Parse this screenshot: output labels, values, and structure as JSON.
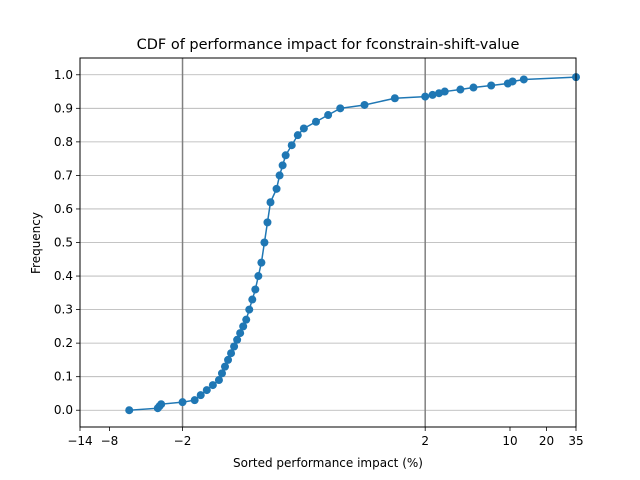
{
  "chart_data": {
    "type": "line",
    "title": "CDF of performance impact for fconstrain-shift-value",
    "xlabel": "Sorted performance impact (%)",
    "ylabel": "Frequency",
    "xlim": [
      -14,
      35
    ],
    "ylim": [
      -0.05,
      1.05
    ],
    "x_scale": "symlog",
    "x_ticks": [
      -14,
      -8,
      -2,
      2,
      10,
      20,
      35
    ],
    "x_tick_labels": [
      "−14",
      "−8",
      "−2",
      "2",
      "10",
      "20",
      "35"
    ],
    "y_ticks": [
      0.0,
      0.1,
      0.2,
      0.3,
      0.4,
      0.5,
      0.6,
      0.7,
      0.8,
      0.9,
      1.0
    ],
    "y_tick_labels": [
      "0.0",
      "0.1",
      "0.2",
      "0.3",
      "0.4",
      "0.5",
      "0.6",
      "0.7",
      "0.8",
      "0.9",
      "1.0"
    ],
    "grid": "y",
    "reference_lines_x": [
      -2,
      2
    ],
    "reference_line_color": "#808080",
    "series_color": "#1f77b4",
    "series": [
      {
        "values": [
          [
            -5.5,
            0.0
          ],
          [
            -3.2,
            0.006
          ],
          [
            -3.1,
            0.012
          ],
          [
            -3.0,
            0.018
          ],
          [
            -2.0,
            0.024
          ],
          [
            -1.8,
            0.03
          ],
          [
            -1.7,
            0.045
          ],
          [
            -1.6,
            0.06
          ],
          [
            -1.5,
            0.075
          ],
          [
            -1.4,
            0.09
          ],
          [
            -1.35,
            0.11
          ],
          [
            -1.3,
            0.13
          ],
          [
            -1.25,
            0.15
          ],
          [
            -1.2,
            0.17
          ],
          [
            -1.15,
            0.19
          ],
          [
            -1.1,
            0.21
          ],
          [
            -1.05,
            0.23
          ],
          [
            -1.0,
            0.25
          ],
          [
            -0.95,
            0.27
          ],
          [
            -0.9,
            0.3
          ],
          [
            -0.85,
            0.33
          ],
          [
            -0.8,
            0.36
          ],
          [
            -0.75,
            0.4
          ],
          [
            -0.7,
            0.44
          ],
          [
            -0.65,
            0.5
          ],
          [
            -0.6,
            0.56
          ],
          [
            -0.55,
            0.62
          ],
          [
            -0.45,
            0.66
          ],
          [
            -0.4,
            0.7
          ],
          [
            -0.35,
            0.73
          ],
          [
            -0.3,
            0.76
          ],
          [
            -0.2,
            0.79
          ],
          [
            -0.1,
            0.82
          ],
          [
            0.0,
            0.84
          ],
          [
            0.2,
            0.86
          ],
          [
            0.4,
            0.88
          ],
          [
            0.6,
            0.9
          ],
          [
            1.0,
            0.91
          ],
          [
            1.5,
            0.93
          ],
          [
            2.0,
            0.935
          ],
          [
            2.3,
            0.94
          ],
          [
            2.6,
            0.945
          ],
          [
            2.9,
            0.95
          ],
          [
            3.9,
            0.956
          ],
          [
            5.0,
            0.962
          ],
          [
            7.0,
            0.968
          ],
          [
            9.6,
            0.974
          ],
          [
            10.5,
            0.98
          ],
          [
            13.0,
            0.986
          ],
          [
            35.0,
            0.993
          ]
        ]
      }
    ]
  }
}
